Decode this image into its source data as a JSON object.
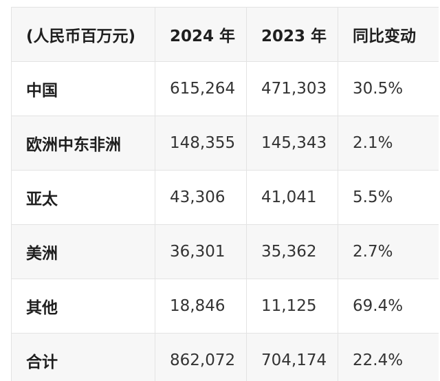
{
  "table": {
    "headers": [
      "(人民币百万元)",
      "2024 年",
      "2023 年",
      "同比变动"
    ],
    "rows": [
      {
        "label": "中国",
        "y2024": "615,264",
        "y2023": "471,303",
        "change": "30.5%"
      },
      {
        "label": "欧洲中东非洲",
        "y2024": "148,355",
        "y2023": "145,343",
        "change": "2.1%"
      },
      {
        "label": "亚太",
        "y2024": "43,306",
        "y2023": "41,041",
        "change": "5.5%"
      },
      {
        "label": "美洲",
        "y2024": "36,301",
        "y2023": "35,362",
        "change": "2.7%"
      },
      {
        "label": "其他",
        "y2024": "18,846",
        "y2023": "11,125",
        "change": "69.4%"
      },
      {
        "label": "合计",
        "y2024": "862,072",
        "y2023": "704,174",
        "change": "22.4%"
      }
    ]
  },
  "colors": {
    "header_background": "#f7f7f7",
    "alt_row_background": "#f7f7f7",
    "border": "#e3e3e3",
    "text": "#1f1f1f"
  }
}
